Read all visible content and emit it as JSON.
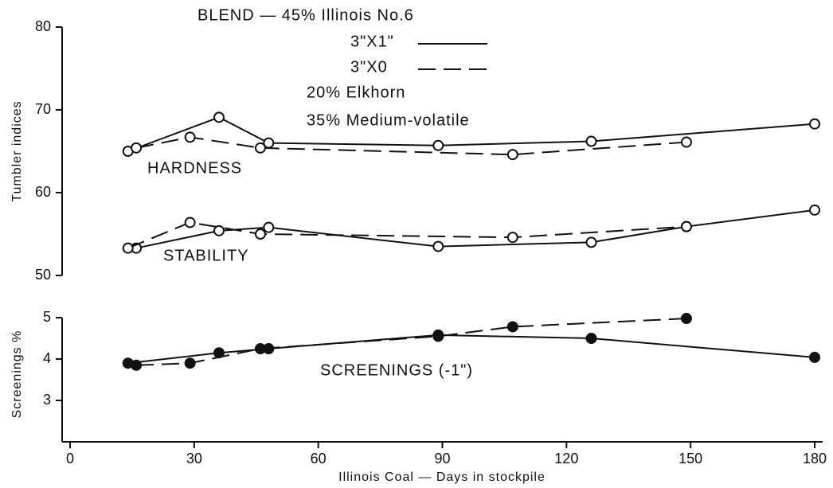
{
  "legend": {
    "title": "BLEND — 45% Illinois No.6",
    "entries": [
      {
        "label": "3\"X1\"",
        "style": "solid"
      },
      {
        "label": "3\"X0",
        "style": "dashed"
      }
    ],
    "notes": [
      "20% Elkhorn",
      "35% Medium-volatile"
    ]
  },
  "xlabel": "Illinois Coal — Days in stockpile",
  "chart_data": [
    {
      "type": "line",
      "ylabel": "Tumbler indices",
      "xlim": [
        0,
        180
      ],
      "ylim": [
        50,
        80
      ],
      "yticks": [
        50,
        60,
        70,
        80
      ],
      "marker": "open",
      "annotations": [
        "HARDNESS",
        "STABILITY"
      ],
      "series": [
        {
          "style": "solid",
          "x": [
            14,
            36,
            48,
            89,
            126,
            180
          ],
          "values": [
            65.0,
            69.1,
            66.0,
            65.7,
            66.2,
            68.3
          ]
        },
        {
          "style": "dashed",
          "x": [
            16,
            29,
            46,
            107,
            149
          ],
          "values": [
            65.4,
            66.7,
            65.4,
            64.6,
            66.1
          ]
        },
        {
          "style": "solid",
          "x": [
            16,
            36,
            48,
            89,
            126,
            149,
            180
          ],
          "values": [
            53.3,
            55.4,
            55.8,
            53.5,
            54.0,
            55.9,
            57.9
          ]
        },
        {
          "style": "dashed",
          "x": [
            14,
            29,
            46,
            107,
            149
          ],
          "values": [
            53.3,
            56.4,
            55.0,
            54.6,
            55.9
          ]
        }
      ]
    },
    {
      "type": "line",
      "ylabel": "Screenings %",
      "xlim": [
        0,
        180
      ],
      "xticks": [
        0,
        30,
        60,
        90,
        120,
        150,
        180
      ],
      "ylim": [
        2,
        5
      ],
      "yticks": [
        3,
        4,
        5
      ],
      "marker": "filled",
      "annotations": [
        "SCREENINGS (-1\")"
      ],
      "series": [
        {
          "style": "solid",
          "x": [
            14,
            36,
            48,
            89,
            126,
            180
          ],
          "values": [
            3.9,
            4.15,
            4.25,
            4.58,
            4.5,
            4.04
          ]
        },
        {
          "style": "dashed",
          "x": [
            16,
            29,
            46,
            89,
            107,
            149
          ],
          "values": [
            3.85,
            3.9,
            4.25,
            4.55,
            4.78,
            4.98
          ]
        }
      ]
    }
  ]
}
